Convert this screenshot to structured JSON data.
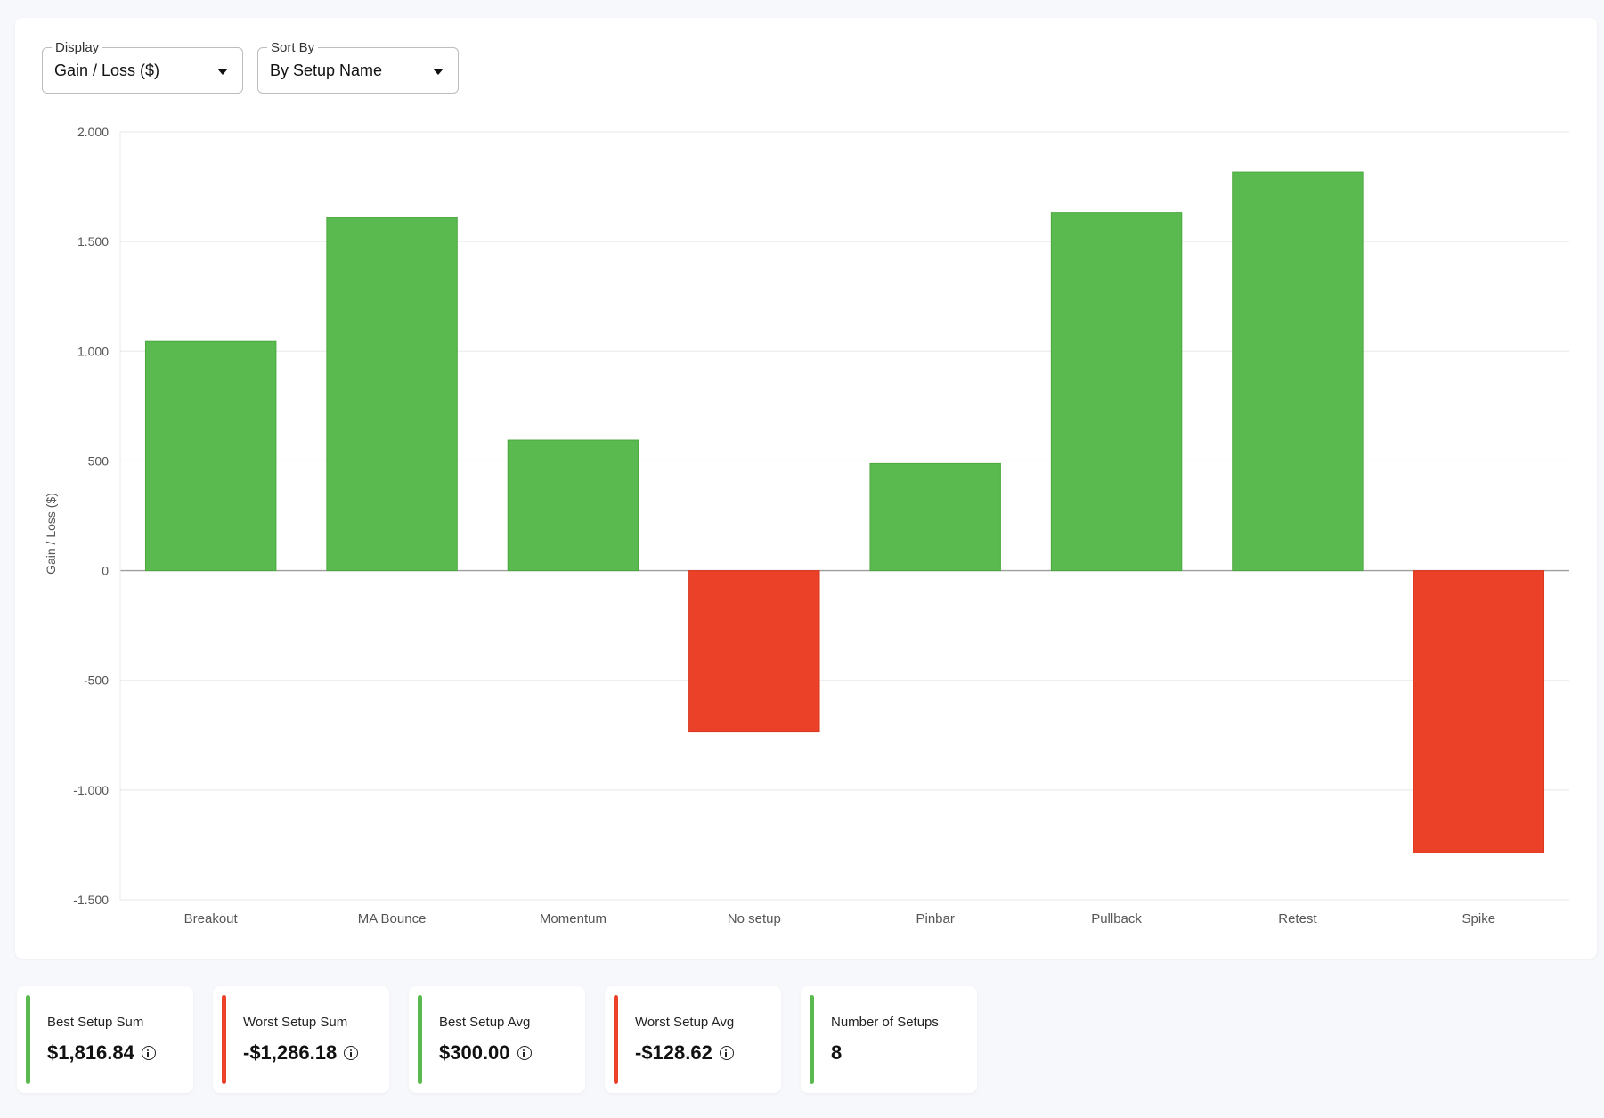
{
  "controls": {
    "display": {
      "label": "Display",
      "value": "Gain / Loss ($)"
    },
    "sort_by": {
      "label": "Sort By",
      "value": "By Setup Name"
    }
  },
  "colors": {
    "positive": "#5aba4f",
    "negative": "#ea4128",
    "grid": "#e8e8e8",
    "axis": "#9e9e9e"
  },
  "chart_data": {
    "type": "bar",
    "categories": [
      "Breakout",
      "MA Bounce",
      "Momentum",
      "No setup",
      "Pinbar",
      "Pullback",
      "Retest",
      "Spike"
    ],
    "values": [
      1045,
      1608,
      595,
      -735,
      488,
      1632,
      1817,
      -1286
    ],
    "ylabel": "Gain / Loss ($)",
    "xlabel": "",
    "ylim": [
      -1500,
      2000
    ],
    "yticks": [
      2000,
      1500,
      1000,
      500,
      0,
      -500,
      -1000,
      -1500
    ],
    "ytick_labels": [
      "2.000",
      "1.500",
      "1.000",
      "500",
      "0",
      "-500",
      "-1.000",
      "-1.500"
    ],
    "grid": true
  },
  "stats": [
    {
      "title": "Best Setup Sum",
      "value": "$1,816.84",
      "color": "#5aba4f",
      "info": true
    },
    {
      "title": "Worst Setup Sum",
      "value": "-$1,286.18",
      "color": "#ea4128",
      "info": true
    },
    {
      "title": "Best Setup Avg",
      "value": "$300.00",
      "color": "#5aba4f",
      "info": true
    },
    {
      "title": "Worst Setup Avg",
      "value": "-$128.62",
      "color": "#ea4128",
      "info": true
    },
    {
      "title": "Number of Setups",
      "value": "8",
      "color": "#5aba4f",
      "info": false
    }
  ]
}
